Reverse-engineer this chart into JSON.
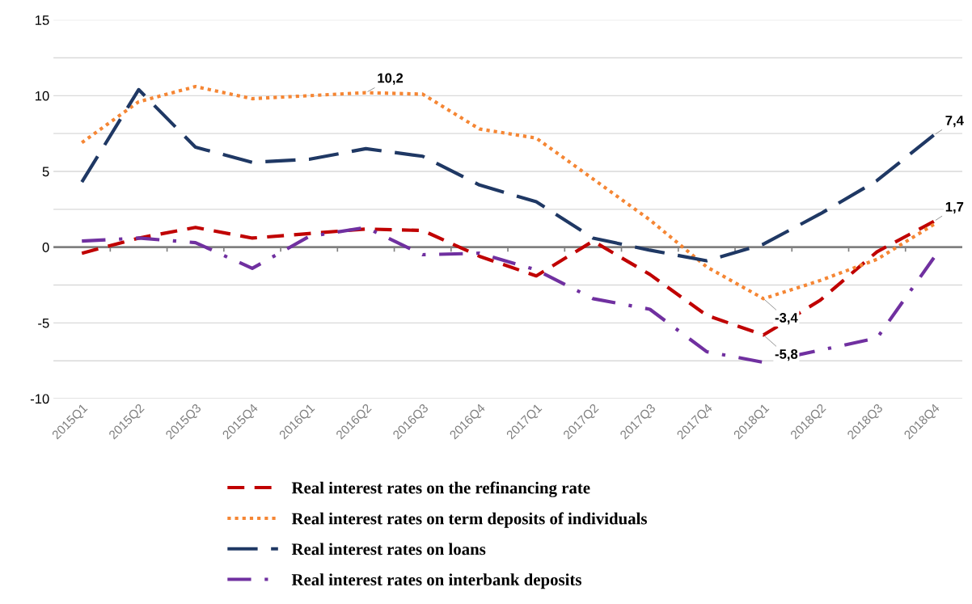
{
  "chart_data": {
    "type": "line",
    "categories": [
      "2015Q1",
      "2015Q2",
      "2015Q3",
      "2015Q4",
      "2016Q1",
      "2016Q2",
      "2016Q3",
      "2016Q4",
      "2017Q1",
      "2017Q2",
      "2017Q3",
      "2017Q4",
      "2018Q1",
      "2018Q2",
      "2018Q3",
      "2018Q4"
    ],
    "series": [
      {
        "name": "Real interest rates on the refinancing rate",
        "color": "#c00000",
        "line_style": "dashed",
        "values": [
          -0.4,
          0.6,
          1.3,
          0.6,
          0.9,
          1.2,
          1.1,
          -0.6,
          -1.9,
          0.4,
          -1.8,
          -4.5,
          -5.8,
          -3.5,
          -0.3,
          1.7
        ],
        "value_labels": [
          null,
          null,
          null,
          null,
          null,
          null,
          null,
          null,
          null,
          null,
          null,
          null,
          "-5,8",
          null,
          null,
          "1,7"
        ]
      },
      {
        "name": "Real interest rates on term deposits of individuals",
        "color": "#f58634",
        "line_style": "dotted",
        "values": [
          6.9,
          9.6,
          10.6,
          9.8,
          10.0,
          10.2,
          10.1,
          7.8,
          7.2,
          4.5,
          1.8,
          -1.3,
          -3.4,
          -2.2,
          -0.8,
          1.5
        ],
        "value_labels": [
          null,
          null,
          null,
          null,
          null,
          "10,2",
          null,
          null,
          null,
          null,
          null,
          null,
          "-3,4",
          null,
          null,
          null
        ]
      },
      {
        "name": "Real interest rates on loans",
        "color": "#1f3864",
        "line_style": "longdashed",
        "values": [
          4.3,
          10.4,
          6.6,
          5.6,
          5.8,
          6.5,
          6.0,
          4.1,
          3.0,
          0.6,
          -0.2,
          -0.9,
          0.2,
          2.2,
          4.4,
          7.4
        ],
        "value_labels": [
          null,
          null,
          null,
          null,
          null,
          null,
          null,
          null,
          null,
          null,
          null,
          null,
          null,
          null,
          null,
          "7,4"
        ]
      },
      {
        "name": "Real interest rates on interbank deposits",
        "color": "#7030a0",
        "line_style": "dashdot",
        "values": [
          0.4,
          0.6,
          0.3,
          -1.4,
          0.7,
          1.3,
          -0.5,
          -0.4,
          -1.5,
          -3.4,
          -4.1,
          -6.9,
          -7.6,
          -6.8,
          -6.0,
          -0.7
        ]
      }
    ],
    "ylim": [
      -10,
      15
    ],
    "yticks": [
      -10,
      {
        "value": -7.5,
        "label": null
      },
      -5,
      {
        "value": -2.5,
        "label": null
      },
      0,
      {
        "value": 2.5,
        "label": null
      },
      5,
      {
        "value": 7.5,
        "label": null
      },
      10,
      {
        "value": 12.5,
        "label": null
      },
      15
    ],
    "grid": "y",
    "legend": "bottom"
  }
}
